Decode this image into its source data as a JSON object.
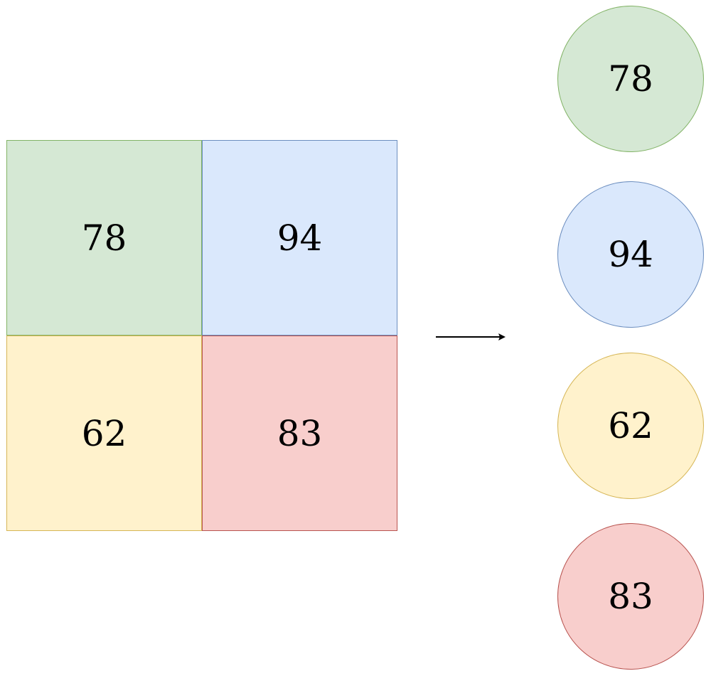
{
  "grid": {
    "cells": [
      {
        "value": "78",
        "fill": "#d5e8d4",
        "stroke": "#82b366"
      },
      {
        "value": "94",
        "fill": "#dae8fc",
        "stroke": "#6c8ebf"
      },
      {
        "value": "62",
        "fill": "#fff2cc",
        "stroke": "#d6b656"
      },
      {
        "value": "83",
        "fill": "#f8cecc",
        "stroke": "#b85450"
      }
    ]
  },
  "circles": [
    {
      "value": "78",
      "fill": "#d5e8d4",
      "stroke": "#82b366"
    },
    {
      "value": "94",
      "fill": "#dae8fc",
      "stroke": "#6c8ebf"
    },
    {
      "value": "62",
      "fill": "#fff2cc",
      "stroke": "#d6b656"
    },
    {
      "value": "83",
      "fill": "#f8cecc",
      "stroke": "#b85450"
    }
  ],
  "arrow": {
    "icon": "right-arrow-icon",
    "color": "#000000"
  }
}
